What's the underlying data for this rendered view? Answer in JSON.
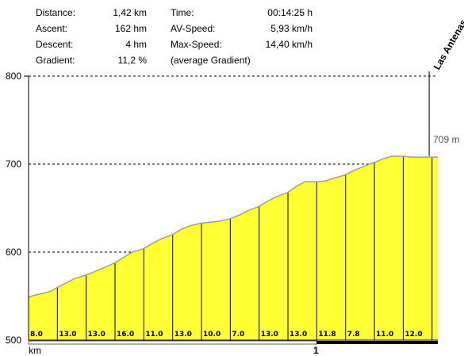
{
  "stats": {
    "rows": [
      {
        "label": "Distance:",
        "value": "1,42 km",
        "label2": "Time:",
        "value2": "00:14:25 h"
      },
      {
        "label": "Ascent:",
        "value": "162 hm",
        "label2": "AV-Speed:",
        "value2": "5,93 km/h"
      },
      {
        "label": "Descent:",
        "value": "4 hm",
        "label2": "Max-Speed:",
        "value2": "14,40 km/h"
      },
      {
        "label": "Gradient:",
        "value": "11,2 %",
        "label2": "(average Gradient)",
        "value2": ""
      }
    ]
  },
  "chart_data": {
    "type": "area",
    "xlabel": "km",
    "ylabel": "",
    "xlim": [
      0,
      1.42
    ],
    "ylim": [
      500,
      800
    ],
    "y_ticks": [
      500,
      600,
      700,
      800
    ],
    "x_ticks": [
      {
        "value": 1,
        "label": "1"
      }
    ],
    "grid": "dashed horizontal at y ticks",
    "fill_color": "#ffff33",
    "line_color": "#9999cc",
    "x": [
      0,
      0.02,
      0.05,
      0.08,
      0.1,
      0.13,
      0.16,
      0.2,
      0.23,
      0.26,
      0.3,
      0.33,
      0.36,
      0.4,
      0.43,
      0.46,
      0.5,
      0.53,
      0.56,
      0.6,
      0.63,
      0.66,
      0.7,
      0.73,
      0.76,
      0.8,
      0.83,
      0.86,
      0.9,
      0.93,
      0.96,
      1.0,
      1.03,
      1.06,
      1.1,
      1.13,
      1.16,
      1.2,
      1.23,
      1.26,
      1.3,
      1.33,
      1.36,
      1.39,
      1.42
    ],
    "y": [
      549,
      551,
      553,
      556,
      560,
      565,
      570,
      574,
      578,
      582,
      588,
      594,
      600,
      604,
      610,
      615,
      620,
      626,
      630,
      633,
      634,
      635,
      638,
      642,
      647,
      652,
      658,
      663,
      668,
      675,
      680,
      680,
      681,
      684,
      688,
      693,
      697,
      702,
      706,
      709,
      709,
      708,
      708,
      708,
      708
    ],
    "segments": [
      {
        "x0": 0,
        "x1": 0.1,
        "label": "8.0"
      },
      {
        "x0": 0.1,
        "x1": 0.2,
        "label": "13.0"
      },
      {
        "x0": 0.2,
        "x1": 0.3,
        "label": "13.0"
      },
      {
        "x0": 0.3,
        "x1": 0.4,
        "label": "16.0"
      },
      {
        "x0": 0.4,
        "x1": 0.5,
        "label": "11.0"
      },
      {
        "x0": 0.5,
        "x1": 0.6,
        "label": "13.0"
      },
      {
        "x0": 0.6,
        "x1": 0.7,
        "label": "10.0"
      },
      {
        "x0": 0.7,
        "x1": 0.8,
        "label": "7.0"
      },
      {
        "x0": 0.8,
        "x1": 0.9,
        "label": "13.0"
      },
      {
        "x0": 0.9,
        "x1": 1.0,
        "label": "13.0"
      },
      {
        "x0": 1.0,
        "x1": 1.1,
        "label": "11.8"
      },
      {
        "x0": 1.1,
        "x1": 1.2,
        "label": "7.8"
      },
      {
        "x0": 1.2,
        "x1": 1.3,
        "label": "11.0"
      },
      {
        "x0": 1.3,
        "x1": 1.4,
        "label": "12.0"
      }
    ],
    "annotations": [
      {
        "x": 1.39,
        "y": 709,
        "label": "709 m"
      },
      {
        "x": 1.39,
        "label": "Las Antenas"
      }
    ]
  }
}
